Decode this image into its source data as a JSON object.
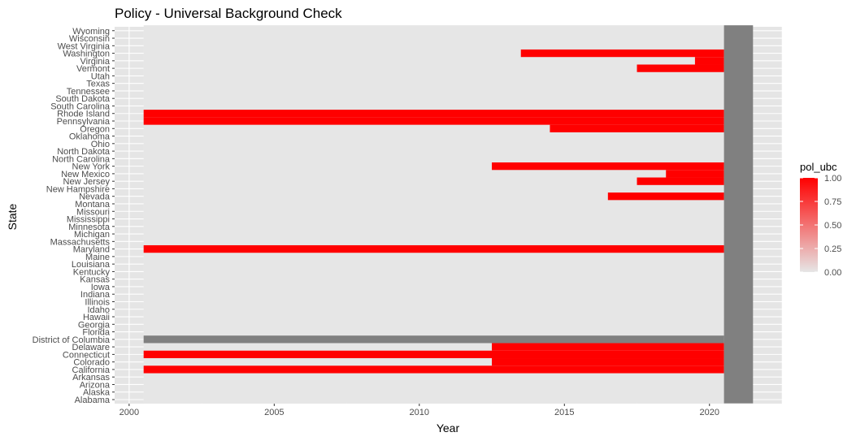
{
  "chart_data": {
    "type": "heatmap",
    "title": "Policy - Universal Background Check",
    "xlabel": "Year",
    "ylabel": "State",
    "xlim": [
      1999.5,
      2022.5
    ],
    "x_ticks": [
      2000,
      2005,
      2010,
      2015,
      2020
    ],
    "x_tick_labels": [
      "2000",
      "2005",
      "2010",
      "2015",
      "2020"
    ],
    "year_range": [
      2001,
      2020
    ],
    "na_year": 2021,
    "states": [
      "Alabama",
      "Alaska",
      "Arizona",
      "Arkansas",
      "California",
      "Colorado",
      "Connecticut",
      "Delaware",
      "District of Columbia",
      "Florida",
      "Georgia",
      "Hawaii",
      "Idaho",
      "Illinois",
      "Indiana",
      "Iowa",
      "Kansas",
      "Kentucky",
      "Louisiana",
      "Maine",
      "Maryland",
      "Massachusetts",
      "Michigan",
      "Minnesota",
      "Mississippi",
      "Missouri",
      "Montana",
      "Nevada",
      "New Hampshire",
      "New Jersey",
      "New Mexico",
      "New York",
      "North Carolina",
      "North Dakota",
      "Ohio",
      "Oklahoma",
      "Oregon",
      "Pennsylvania",
      "Rhode Island",
      "South Carolina",
      "South Dakota",
      "Tennessee",
      "Texas",
      "Utah",
      "Vermont",
      "Virginia",
      "Washington",
      "West Virginia",
      "Wisconsin",
      "Wyoming"
    ],
    "policy_segments": [
      {
        "state": "California",
        "from": 2001,
        "to": 2020,
        "value": 1
      },
      {
        "state": "Colorado",
        "from": 2013,
        "to": 2020,
        "value": 1
      },
      {
        "state": "Connecticut",
        "from": 2001,
        "to": 2020,
        "value": 1
      },
      {
        "state": "Delaware",
        "from": 2013,
        "to": 2020,
        "value": 1
      },
      {
        "state": "Maryland",
        "from": 2001,
        "to": 2020,
        "value": 1
      },
      {
        "state": "Nevada",
        "from": 2017,
        "to": 2020,
        "value": 1
      },
      {
        "state": "New Jersey",
        "from": 2018,
        "to": 2020,
        "value": 1
      },
      {
        "state": "New Mexico",
        "from": 2019,
        "to": 2020,
        "value": 1
      },
      {
        "state": "New York",
        "from": 2013,
        "to": 2020,
        "value": 1
      },
      {
        "state": "Oregon",
        "from": 2015,
        "to": 2020,
        "value": 1
      },
      {
        "state": "Pennsylvania",
        "from": 2001,
        "to": 2020,
        "value": 1
      },
      {
        "state": "Rhode Island",
        "from": 2001,
        "to": 2020,
        "value": 1
      },
      {
        "state": "Vermont",
        "from": 2018,
        "to": 2020,
        "value": 1
      },
      {
        "state": "Virginia",
        "from": 2020,
        "to": 2020,
        "value": 1
      },
      {
        "state": "Washington",
        "from": 2014,
        "to": 2020,
        "value": 1
      }
    ],
    "missing_segments": [
      {
        "state": "District of Columbia",
        "from": 2001,
        "to": 2020
      }
    ],
    "legend": {
      "title": "pol_ubc",
      "position": "right",
      "breaks": [
        1.0,
        0.75,
        0.5,
        0.25,
        0.0
      ],
      "labels": [
        "1.00",
        "0.75",
        "0.50",
        "0.25",
        "0.00"
      ],
      "low_color": "#e6e6e6",
      "high_color": "#ff0000",
      "na_color": "#808080"
    },
    "panel_background": "#e5e5e5",
    "grid": true
  }
}
